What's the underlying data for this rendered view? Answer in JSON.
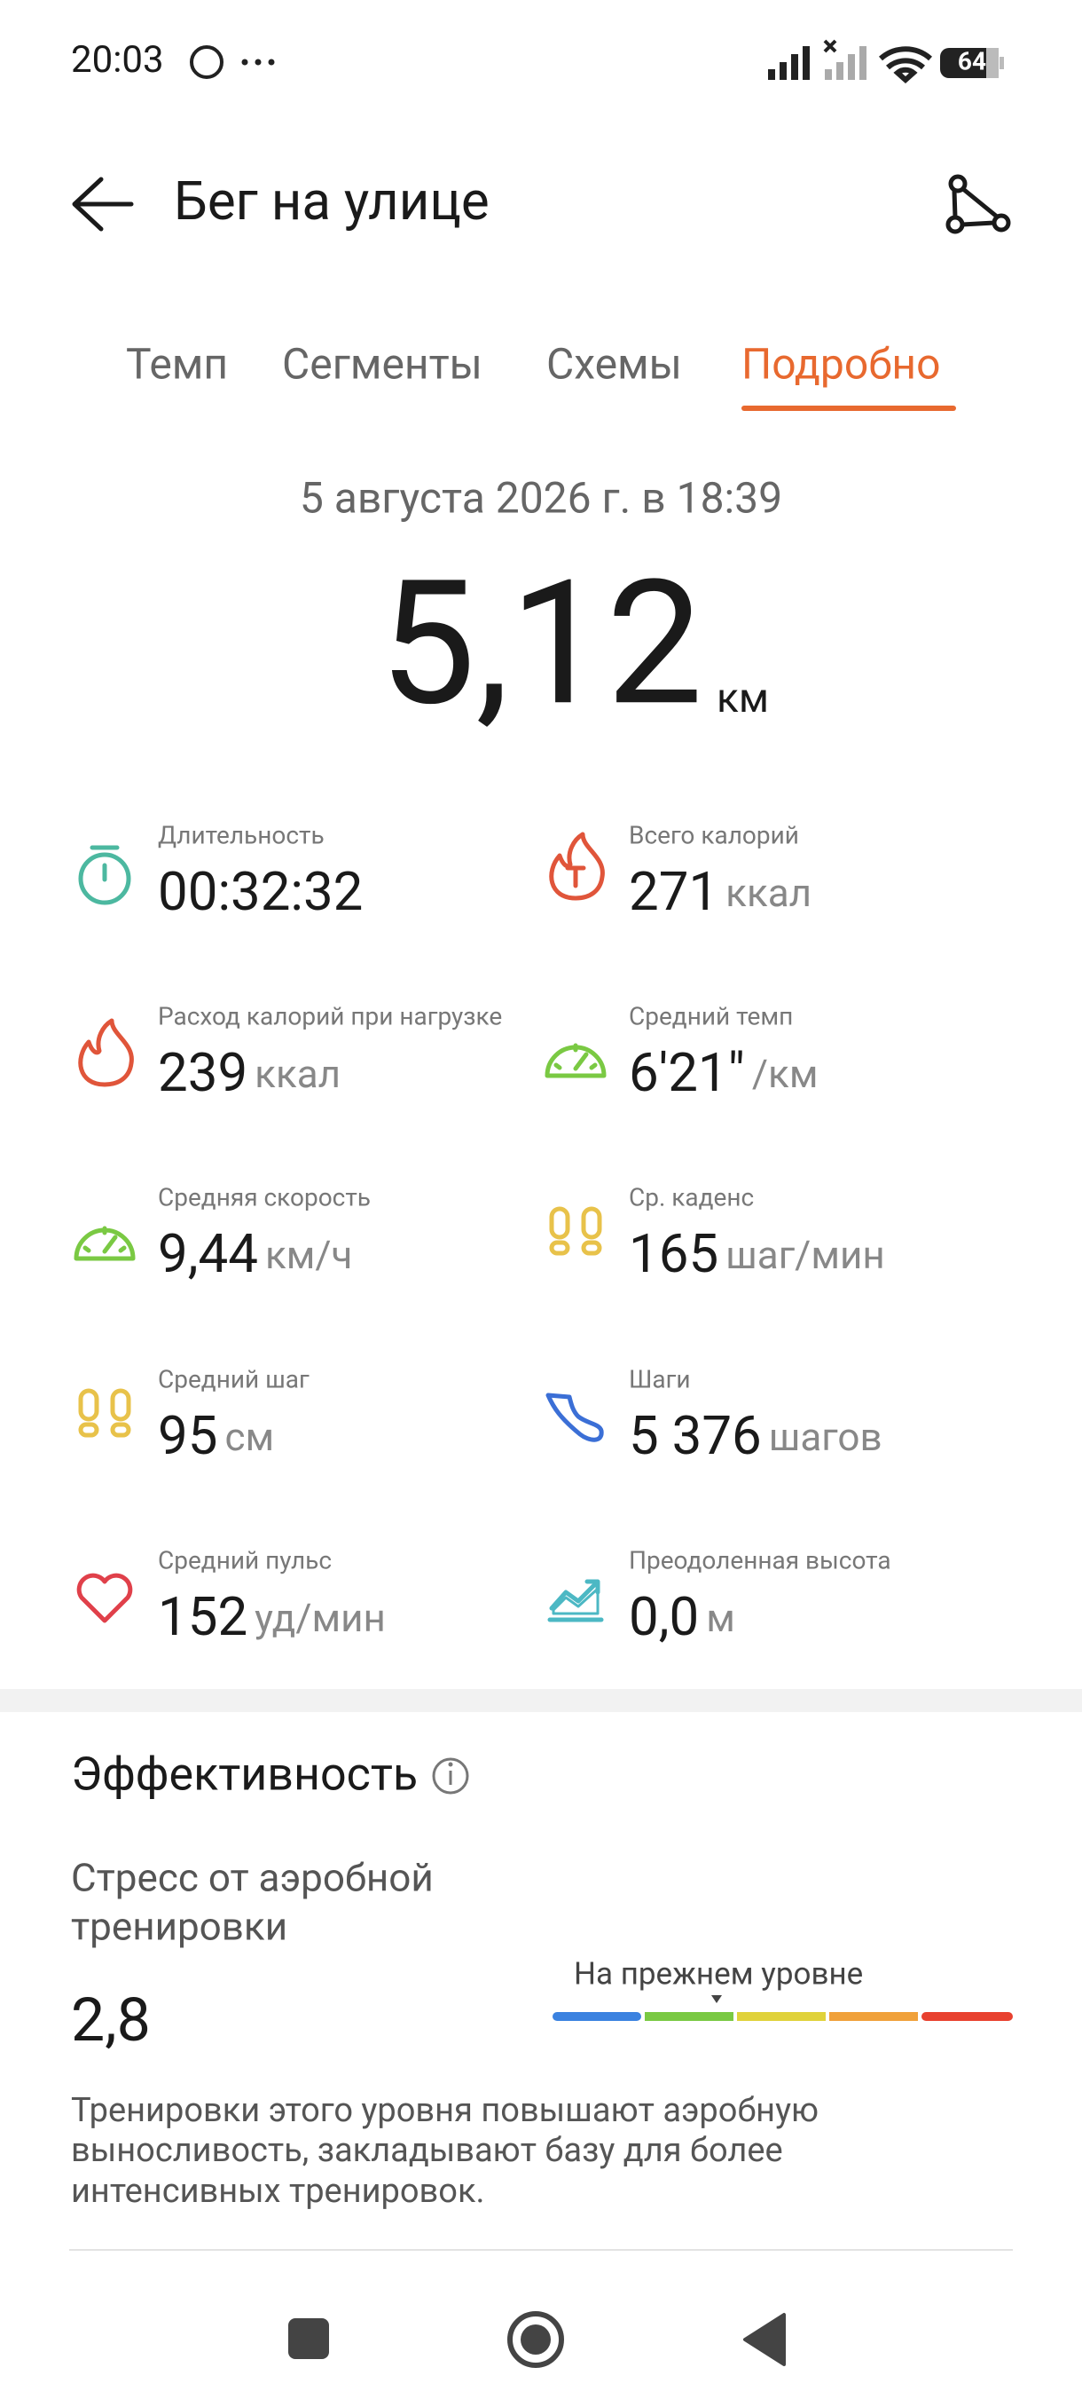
{
  "status_bar": {
    "time": "20:03",
    "battery": "64"
  },
  "header": {
    "title": "Бег на улице"
  },
  "tabs": [
    "Темп",
    "Сегменты",
    "Схемы",
    "Подробно"
  ],
  "summary": {
    "date": "5 августа 2026 г. в 18:39",
    "distance": "5,12",
    "distance_unit": "км"
  },
  "metrics": [
    {
      "label": "Длительность",
      "value": "00:32:32",
      "unit": null
    },
    {
      "label": "Всего калорий",
      "value": "271",
      "unit": "ккал"
    },
    {
      "label": "Расход калорий при нагрузке",
      "value": "239",
      "unit": "ккал"
    },
    {
      "label": "Средний темп",
      "value": "6'21\"",
      "unit": "/км"
    },
    {
      "label": "Средняя скорость",
      "value": "9,44",
      "unit": "км/ч"
    },
    {
      "label": "Ср. каденс",
      "value": "165",
      "unit": "шаг/мин"
    },
    {
      "label": "Средний шаг",
      "value": "95",
      "unit": "см"
    },
    {
      "label": "Шаги",
      "value": "5 376",
      "unit": "шагов"
    },
    {
      "label": "Средний пульс",
      "value": "152",
      "unit": "уд/мин"
    },
    {
      "label": "Преодоленная высота",
      "value": "0,0",
      "unit": "м"
    }
  ],
  "effectiveness": {
    "title": "Эффективность",
    "stress_label": [
      "Стресс от аэробной",
      "тренировки"
    ],
    "stress_value": "2,8",
    "level": "На прежнем уровне",
    "description": [
      "Тренировки этого уровня повышают аэробную",
      "выносливость, закладывают базу для более",
      "интенсивных тренировок."
    ]
  }
}
